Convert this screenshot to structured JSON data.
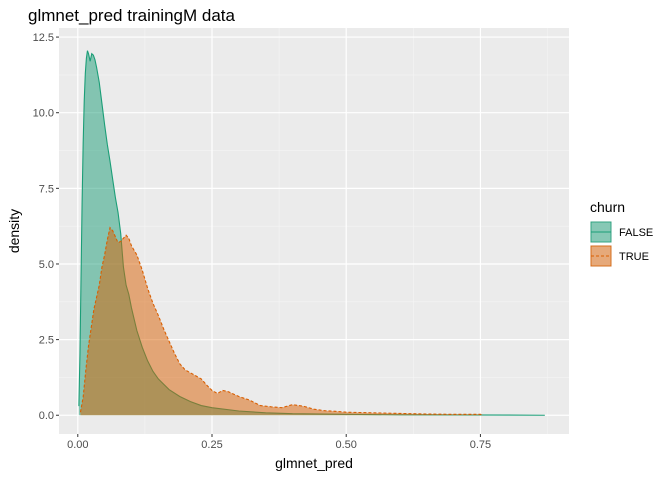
{
  "chart_data": {
    "type": "area",
    "title": "glmnet_pred trainingM data",
    "xlabel": "glmnet_pred",
    "ylabel": "density",
    "xlim": [
      -0.035,
      0.915
    ],
    "ylim": [
      -0.62,
      12.8
    ],
    "xticks": [
      0.0,
      0.25,
      0.5,
      0.75
    ],
    "xtick_labels": [
      "0.00",
      "0.25",
      "0.50",
      "0.75"
    ],
    "yticks": [
      0.0,
      2.5,
      5.0,
      7.5,
      10.0,
      12.5
    ],
    "ytick_labels": [
      "0.0",
      "2.5",
      "5.0",
      "7.5",
      "10.0",
      "12.5"
    ],
    "grid": true,
    "legend": {
      "title": "churn",
      "position": "right"
    },
    "series": [
      {
        "name": "FALSE",
        "color": "#1b9e77",
        "line_style": "solid",
        "points": [
          [
            0.002,
            0.3
          ],
          [
            0.004,
            2.0
          ],
          [
            0.006,
            4.5
          ],
          [
            0.008,
            7.0
          ],
          [
            0.01,
            9.0
          ],
          [
            0.012,
            10.4
          ],
          [
            0.014,
            11.3
          ],
          [
            0.016,
            11.8
          ],
          [
            0.018,
            12.05
          ],
          [
            0.02,
            11.95
          ],
          [
            0.023,
            11.7
          ],
          [
            0.026,
            11.95
          ],
          [
            0.029,
            11.9
          ],
          [
            0.032,
            11.75
          ],
          [
            0.035,
            11.5
          ],
          [
            0.04,
            11.0
          ],
          [
            0.045,
            10.3
          ],
          [
            0.05,
            9.6
          ],
          [
            0.055,
            8.95
          ],
          [
            0.06,
            8.4
          ],
          [
            0.065,
            7.8
          ],
          [
            0.07,
            7.2
          ],
          [
            0.075,
            6.7
          ],
          [
            0.08,
            6.0
          ],
          [
            0.085,
            4.9
          ],
          [
            0.09,
            4.3
          ],
          [
            0.095,
            4.0
          ],
          [
            0.1,
            3.55
          ],
          [
            0.11,
            2.8
          ],
          [
            0.12,
            2.25
          ],
          [
            0.13,
            1.8
          ],
          [
            0.14,
            1.45
          ],
          [
            0.15,
            1.2
          ],
          [
            0.17,
            0.85
          ],
          [
            0.19,
            0.62
          ],
          [
            0.21,
            0.45
          ],
          [
            0.23,
            0.32
          ],
          [
            0.25,
            0.25
          ],
          [
            0.3,
            0.14
          ],
          [
            0.35,
            0.08
          ],
          [
            0.4,
            0.05
          ],
          [
            0.5,
            0.03
          ],
          [
            0.6,
            0.015
          ],
          [
            0.7,
            0.01
          ],
          [
            0.8,
            0.005
          ],
          [
            0.87,
            0.0
          ]
        ]
      },
      {
        "name": "TRUE",
        "color": "#d95f02",
        "line_style": "dashed",
        "points": [
          [
            0.005,
            0.1
          ],
          [
            0.01,
            0.6
          ],
          [
            0.015,
            1.5
          ],
          [
            0.02,
            2.3
          ],
          [
            0.025,
            2.9
          ],
          [
            0.03,
            3.5
          ],
          [
            0.035,
            3.9
          ],
          [
            0.04,
            4.3
          ],
          [
            0.045,
            4.9
          ],
          [
            0.05,
            5.3
          ],
          [
            0.055,
            5.8
          ],
          [
            0.06,
            6.2
          ],
          [
            0.065,
            6.1
          ],
          [
            0.07,
            5.9
          ],
          [
            0.075,
            5.7
          ],
          [
            0.08,
            5.75
          ],
          [
            0.085,
            5.85
          ],
          [
            0.09,
            5.95
          ],
          [
            0.095,
            5.85
          ],
          [
            0.1,
            5.6
          ],
          [
            0.11,
            5.3
          ],
          [
            0.12,
            4.8
          ],
          [
            0.13,
            4.2
          ],
          [
            0.14,
            3.7
          ],
          [
            0.15,
            3.3
          ],
          [
            0.16,
            2.85
          ],
          [
            0.17,
            2.45
          ],
          [
            0.18,
            2.05
          ],
          [
            0.19,
            1.7
          ],
          [
            0.2,
            1.5
          ],
          [
            0.21,
            1.4
          ],
          [
            0.22,
            1.3
          ],
          [
            0.23,
            1.2
          ],
          [
            0.24,
            1.0
          ],
          [
            0.25,
            0.82
          ],
          [
            0.26,
            0.72
          ],
          [
            0.27,
            0.82
          ],
          [
            0.28,
            0.78
          ],
          [
            0.3,
            0.62
          ],
          [
            0.32,
            0.5
          ],
          [
            0.34,
            0.32
          ],
          [
            0.36,
            0.28
          ],
          [
            0.38,
            0.25
          ],
          [
            0.4,
            0.35
          ],
          [
            0.42,
            0.3
          ],
          [
            0.44,
            0.2
          ],
          [
            0.46,
            0.15
          ],
          [
            0.48,
            0.13
          ],
          [
            0.5,
            0.1
          ],
          [
            0.55,
            0.08
          ],
          [
            0.6,
            0.06
          ],
          [
            0.65,
            0.04
          ],
          [
            0.7,
            0.03
          ],
          [
            0.75,
            0.03
          ],
          [
            0.755,
            0.0
          ]
        ]
      }
    ]
  }
}
